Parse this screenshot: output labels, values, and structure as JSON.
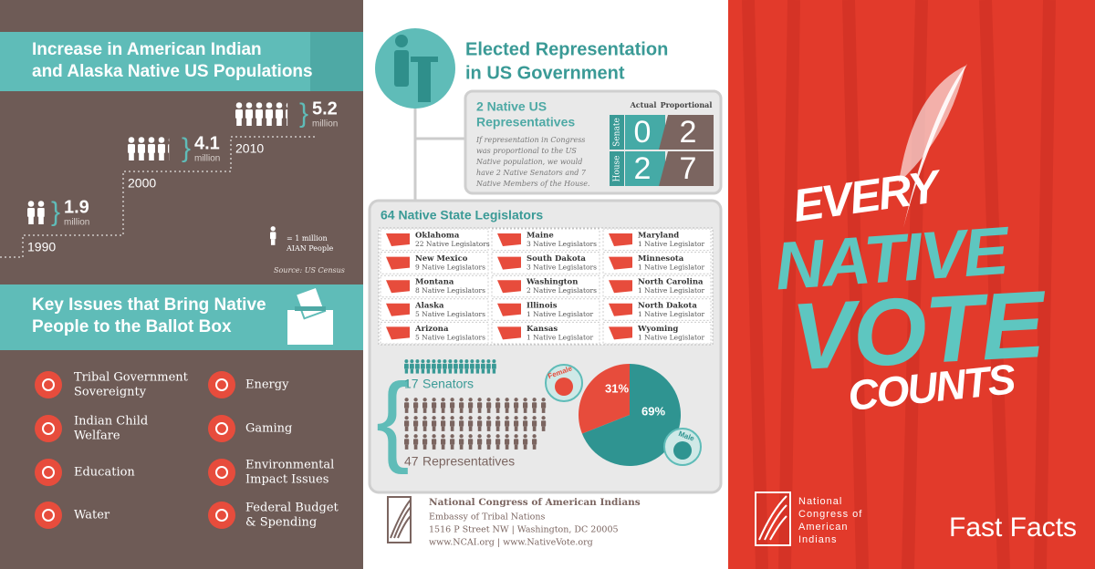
{
  "left": {
    "population": {
      "title": [
        "Increase in American Indian",
        "and Alaska Native US Populations"
      ],
      "years": [
        {
          "year": "1990",
          "value": 1.9,
          "unit": "million"
        },
        {
          "year": "2000",
          "value": 4.1,
          "unit": "million"
        },
        {
          "year": "2010",
          "value": 5.2,
          "unit": "million"
        }
      ],
      "legend_unit": "= 1 million",
      "legend_label": "AIAN People",
      "source": "Source: US Census"
    },
    "issues": {
      "title": [
        "Key Issues that Bring Native",
        "People to the Ballot Box"
      ],
      "items": [
        [
          "Tribal Government",
          "Sovereignty"
        ],
        [
          "Indian Child",
          "Welfare"
        ],
        [
          "Education"
        ],
        [
          "Water"
        ],
        [
          "Energy"
        ],
        [
          "Gaming"
        ],
        [
          "Environmental",
          "Impact Issues"
        ],
        [
          "Federal Budget",
          "& Spending"
        ]
      ]
    }
  },
  "middle": {
    "title": [
      "Elected Representation",
      "in US Government"
    ],
    "representatives": {
      "title": [
        "2 Native US",
        "Representatives"
      ],
      "note": [
        "If representation in Congress",
        "was proportional to the US",
        "Native population, we would",
        "have 2 Native Senators and 7",
        "Native Members of the House."
      ],
      "headers": [
        "Actual",
        "Proportional"
      ],
      "rows": [
        {
          "label": "Senate",
          "actual": 0,
          "proportional": 2
        },
        {
          "label": "House",
          "actual": 2,
          "proportional": 7
        }
      ]
    },
    "legislators": {
      "title": "64 Native State Legislators",
      "states": [
        {
          "name": "Oklahoma",
          "count": "22 Native Legislators"
        },
        {
          "name": "Maine",
          "count": "3 Native Legislators"
        },
        {
          "name": "Maryland",
          "count": "1 Native Legislator"
        },
        {
          "name": "New Mexico",
          "count": "9 Native Legislators"
        },
        {
          "name": "South Dakota",
          "count": "3 Native Legislators"
        },
        {
          "name": "Minnesota",
          "count": "1 Native Legislator"
        },
        {
          "name": "Montana",
          "count": "8 Native Legislators"
        },
        {
          "name": "Washington",
          "count": "2 Native Legislators"
        },
        {
          "name": "North Carolina",
          "count": "1 Native Legislator"
        },
        {
          "name": "Alaska",
          "count": "5 Native Legislators"
        },
        {
          "name": "Illinois",
          "count": "1 Native Legislator"
        },
        {
          "name": "North Dakota",
          "count": "1 Native Legislator"
        },
        {
          "name": "Arizona",
          "count": "5 Native Legislators"
        },
        {
          "name": "Kansas",
          "count": "1 Native Legislator"
        },
        {
          "name": "Wyoming",
          "count": "1 Native Legislator"
        }
      ],
      "senators": {
        "count": 17,
        "label": "Senators"
      },
      "representatives": {
        "count": 47,
        "label": "Representatives"
      },
      "gender": {
        "labels": [
          "Female",
          "Male"
        ],
        "values": [
          31,
          69
        ],
        "value_labels": [
          "31%",
          "69%"
        ],
        "colors": [
          "#e74c3c",
          "#2f9491"
        ]
      }
    },
    "footer": [
      "National Congress of American Indians",
      "Embassy of Tribal Nations",
      "1516 P Street NW | Washington, DC 20005",
      "www.NCAI.org | www.NativeVote.org"
    ]
  },
  "right": {
    "slogan": [
      "EVERY",
      "NATIVE",
      "VOTE",
      "COUNTS"
    ],
    "org": [
      "National",
      "Congress of",
      "American",
      "Indians"
    ],
    "fast_facts": "Fast Facts"
  }
}
